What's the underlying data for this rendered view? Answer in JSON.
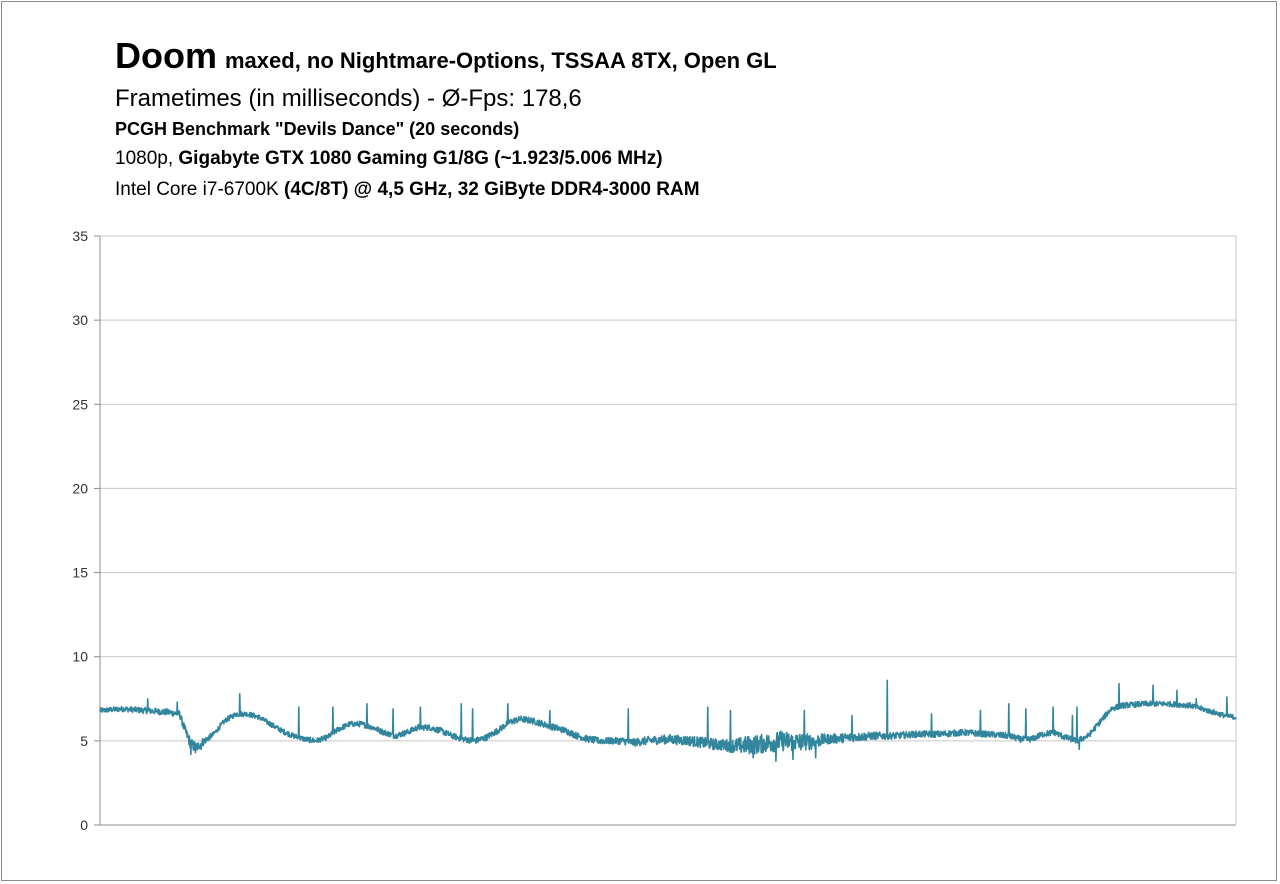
{
  "title": {
    "main": "Doom",
    "sub": "maxed, no Nightmare-Options,  TSSAA 8TX, Open GL",
    "line2": "Frametimes (in milliseconds) - Ø-Fps: 178,6",
    "line3": "PCGH Benchmark \"Devils Dance\" (20 seconds)",
    "line4_normal": "1080p, ",
    "line4_bold": "Gigabyte GTX 1080 Gaming G1/8G (~1.923/5.006 MHz)",
    "line5_normal": "Intel Core i7-6700K ",
    "line5_bold": "(4C/8T) @ 4,5 GHz, 32 GiByte DDR4-3000 RAM"
  },
  "colors": {
    "series": "#31859c",
    "grid": "#c8c8c8",
    "axis": "#8c8c8c"
  },
  "chart_data": {
    "type": "line",
    "title": "Frametimes (in milliseconds) - Ø-Fps: 178,6",
    "xlabel": "",
    "ylabel": "",
    "ylim": [
      0,
      35
    ],
    "yticks": [
      "0",
      "5",
      "10",
      "15",
      "20",
      "25",
      "30",
      "35"
    ],
    "grid": true,
    "legend": "none",
    "series": [
      {
        "baseline": [
          [
            0,
            6.8
          ],
          [
            2,
            6.9
          ],
          [
            4,
            6.8
          ],
          [
            6,
            6.7
          ],
          [
            7,
            6.6
          ],
          [
            7.5,
            5.6
          ],
          [
            8,
            4.8
          ],
          [
            8.5,
            4.6
          ],
          [
            9,
            4.9
          ],
          [
            10,
            5.4
          ],
          [
            11,
            6.2
          ],
          [
            12,
            6.6
          ],
          [
            13,
            6.6
          ],
          [
            14,
            6.4
          ],
          [
            15,
            6.0
          ],
          [
            16,
            5.6
          ],
          [
            17,
            5.3
          ],
          [
            18,
            5.1
          ],
          [
            19,
            5.0
          ],
          [
            20,
            5.2
          ],
          [
            21,
            5.7
          ],
          [
            22,
            6.0
          ],
          [
            23,
            6.0
          ],
          [
            24,
            5.8
          ],
          [
            25,
            5.5
          ],
          [
            26,
            5.3
          ],
          [
            27,
            5.5
          ],
          [
            28,
            5.8
          ],
          [
            29,
            5.8
          ],
          [
            30,
            5.6
          ],
          [
            31,
            5.3
          ],
          [
            32,
            5.1
          ],
          [
            33,
            5.0
          ],
          [
            34,
            5.2
          ],
          [
            35,
            5.6
          ],
          [
            36,
            6.1
          ],
          [
            37,
            6.3
          ],
          [
            38,
            6.2
          ],
          [
            39,
            6.0
          ],
          [
            40,
            5.8
          ],
          [
            41,
            5.6
          ],
          [
            42,
            5.3
          ],
          [
            43,
            5.1
          ],
          [
            44,
            5.0
          ],
          [
            45,
            5.0
          ],
          [
            46,
            5.0
          ],
          [
            47,
            4.9
          ],
          [
            48,
            5.0
          ],
          [
            50,
            5.1
          ],
          [
            52,
            5.0
          ],
          [
            54,
            4.8
          ],
          [
            56,
            4.7
          ],
          [
            58,
            4.8
          ],
          [
            60,
            5.0
          ],
          [
            62,
            4.9
          ],
          [
            64,
            5.1
          ],
          [
            66,
            5.2
          ],
          [
            68,
            5.3
          ],
          [
            70,
            5.3
          ],
          [
            72,
            5.4
          ],
          [
            74,
            5.4
          ],
          [
            76,
            5.5
          ],
          [
            78,
            5.4
          ],
          [
            80,
            5.3
          ],
          [
            81,
            5.1
          ],
          [
            82,
            5.1
          ],
          [
            83,
            5.4
          ],
          [
            84,
            5.5
          ],
          [
            85,
            5.2
          ],
          [
            86,
            5.0
          ],
          [
            87,
            5.3
          ],
          [
            88,
            6.1
          ],
          [
            89,
            6.9
          ],
          [
            90,
            7.1
          ],
          [
            92,
            7.2
          ],
          [
            94,
            7.2
          ],
          [
            96,
            7.1
          ],
          [
            97,
            6.9
          ],
          [
            98,
            6.7
          ],
          [
            99,
            6.5
          ],
          [
            100,
            6.4
          ]
        ],
        "noise": [
          [
            0,
            0.15
          ],
          [
            7,
            0.2
          ],
          [
            8,
            0.35
          ],
          [
            10,
            0.15
          ],
          [
            45,
            0.2
          ],
          [
            55,
            0.35
          ],
          [
            57,
            0.55
          ],
          [
            60,
            0.6
          ],
          [
            62,
            0.55
          ],
          [
            64,
            0.3
          ],
          [
            70,
            0.2
          ],
          [
            100,
            0.15
          ]
        ],
        "spikes": [
          [
            4.2,
            7.5
          ],
          [
            6.8,
            7.3
          ],
          [
            12.3,
            7.8
          ],
          [
            17.5,
            7.0
          ],
          [
            20.5,
            7.0
          ],
          [
            23.5,
            7.2
          ],
          [
            25.8,
            6.9
          ],
          [
            28.2,
            7.0
          ],
          [
            31.8,
            7.2
          ],
          [
            32.8,
            6.9
          ],
          [
            35.9,
            7.2
          ],
          [
            39.6,
            6.8
          ],
          [
            46.5,
            6.9
          ],
          [
            53.5,
            7.0
          ],
          [
            55.5,
            6.8
          ],
          [
            62.0,
            6.8
          ],
          [
            66.2,
            6.5
          ],
          [
            69.3,
            8.6
          ],
          [
            73.2,
            6.6
          ],
          [
            77.5,
            6.8
          ],
          [
            80.0,
            7.2
          ],
          [
            81.5,
            6.9
          ],
          [
            83.9,
            7.0
          ],
          [
            85.6,
            6.5
          ],
          [
            86.0,
            7.0
          ],
          [
            89.7,
            8.4
          ],
          [
            92.7,
            8.3
          ],
          [
            94.8,
            8.0
          ],
          [
            96.5,
            7.5
          ],
          [
            99.2,
            7.6
          ]
        ],
        "dips": [
          [
            8.0,
            4.2
          ],
          [
            8.4,
            4.3
          ],
          [
            8.9,
            4.5
          ],
          [
            57.5,
            4.0
          ],
          [
            59.5,
            3.8
          ],
          [
            61.0,
            3.9
          ],
          [
            63.0,
            4.0
          ],
          [
            86.2,
            4.5
          ]
        ]
      }
    ]
  }
}
